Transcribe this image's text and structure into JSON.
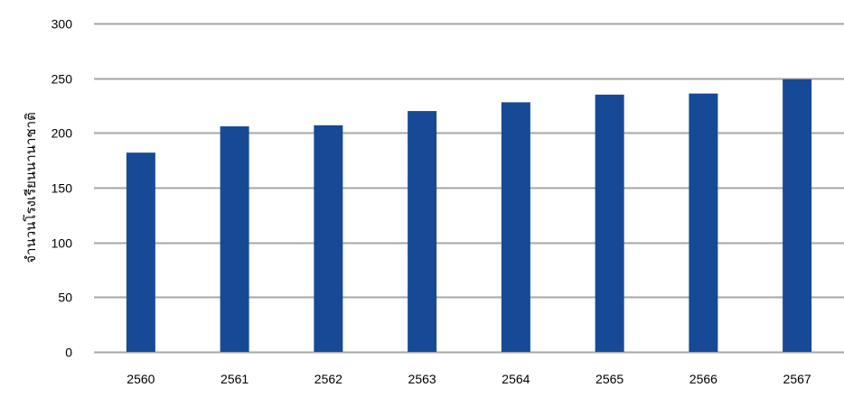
{
  "chart_data": {
    "type": "bar",
    "title": "",
    "xlabel": "",
    "ylabel": "จำนวนโรงเรียนนานาชาติ",
    "categories": [
      "2560",
      "2561",
      "2562",
      "2563",
      "2564",
      "2565",
      "2566",
      "2567"
    ],
    "values": [
      182,
      206,
      207,
      220,
      228,
      235,
      236,
      249
    ],
    "ylim": [
      0,
      300
    ],
    "yticks": [
      0,
      50,
      100,
      150,
      200,
      250,
      300
    ],
    "grid": true,
    "legend": "none",
    "bar_color": "#174A96",
    "grid_color": "#A6A6A6"
  }
}
